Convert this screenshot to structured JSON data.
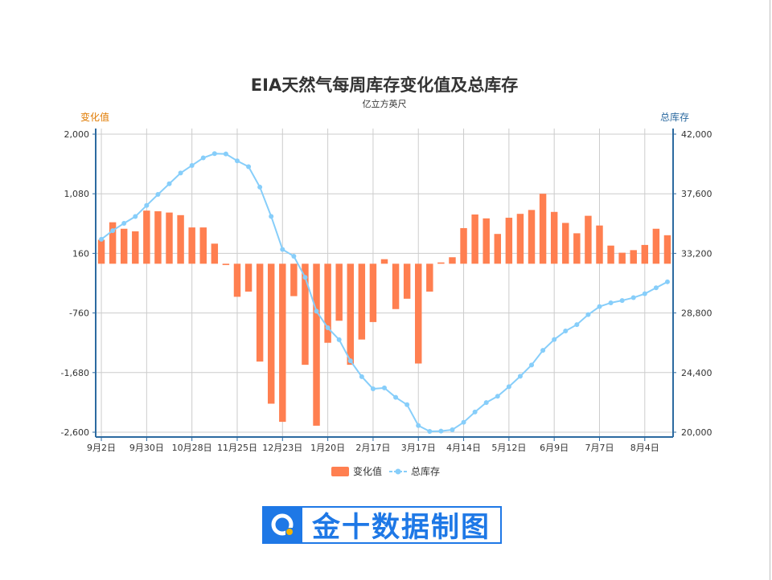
{
  "chart_data": {
    "type": "bar+line",
    "title": "EIA天然气每周库存变化值及总库存",
    "subtitle": "亿立方英尺",
    "y_left_label": "变化值",
    "y_right_label": "总库存",
    "y_left_ticks": [
      "2,000",
      "1,080",
      "160",
      "-760",
      "-1,680",
      "-2,600"
    ],
    "y_right_ticks": [
      "42,000",
      "37,600",
      "33,200",
      "28,800",
      "24,400",
      "20,000"
    ],
    "y_left_range": [
      -2600,
      2000
    ],
    "y_right_range": [
      20000,
      42000
    ],
    "x_tick_labels": [
      "9月2日",
      "9月30日",
      "10月28日",
      "11月25日",
      "12月23日",
      "1月20日",
      "2月17日",
      "3月17日",
      "4月14日",
      "5月12日",
      "6月9日",
      "7月7日",
      "8月4日"
    ],
    "colors": {
      "bar": "#ff7f50",
      "line": "#87cefa",
      "left_axis": "#e07a00",
      "right_axis": "#2c6aa0"
    },
    "series": [
      {
        "name": "变化值",
        "type": "bar",
        "values": [
          370,
          640,
          540,
          500,
          820,
          810,
          790,
          750,
          560,
          560,
          310,
          -20,
          -510,
          -430,
          -1510,
          -2160,
          -2440,
          -500,
          -1560,
          -2500,
          -1220,
          -880,
          -1560,
          -1170,
          -900,
          70,
          -700,
          -540,
          -1540,
          -430,
          20,
          100,
          550,
          760,
          700,
          460,
          710,
          770,
          830,
          1080,
          800,
          630,
          470,
          740,
          590,
          280,
          170,
          210,
          290,
          540,
          440
        ]
      },
      {
        "name": "总库存",
        "type": "line",
        "values": [
          34240,
          34880,
          35420,
          35920,
          36740,
          37550,
          38340,
          39130,
          39690,
          40250,
          40560,
          40540,
          40030,
          39600,
          38090,
          35930,
          33490,
          32990,
          31430,
          28930,
          27710,
          26830,
          25270,
          24100,
          23200,
          23270,
          22570,
          22030,
          20490,
          20060,
          20080,
          20180,
          20730,
          21490,
          22190,
          22650,
          23360,
          24130,
          24960,
          26040,
          26840,
          27470,
          27940,
          28680,
          29270,
          29550,
          29720,
          29930,
          30220,
          30660,
          31100
        ]
      }
    ],
    "legend": [
      "变化值",
      "总库存"
    ],
    "legend_position": "bottom-center",
    "grid": true
  },
  "logo": {
    "text": "金十数据制图",
    "icon": "jin10-logo-icon"
  }
}
